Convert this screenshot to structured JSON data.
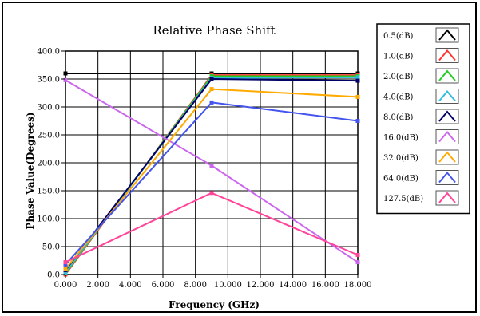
{
  "chart_data": {
    "type": "line",
    "title": "Relative Phase Shift",
    "xlabel": "Frequency (GHz)",
    "ylabel": "Phase Value(Degrees)",
    "xlim": [
      0,
      18
    ],
    "ylim": [
      0,
      400
    ],
    "grid": true,
    "legend_position": "right",
    "x_ticks": [
      "0.000",
      "2.000",
      "4.000",
      "6.000",
      "8.000",
      "10.000",
      "12.000",
      "14.000",
      "16.000",
      "18.000"
    ],
    "y_ticks": [
      "0.0",
      "50.0",
      "100.0",
      "150.0",
      "200.0",
      "250.0",
      "300.0",
      "350.0",
      "400.0"
    ],
    "x": [
      0,
      9,
      18
    ],
    "series": [
      {
        "name": "0.5(dB)",
        "color": "#000000",
        "values": [
          360,
          360,
          360
        ]
      },
      {
        "name": "1.0(dB)",
        "color": "#ff3333",
        "values": [
          0,
          357,
          357
        ]
      },
      {
        "name": "2.0(dB)",
        "color": "#22cc22",
        "values": [
          2,
          355,
          355
        ]
      },
      {
        "name": "4.0(dB)",
        "color": "#33bbdd",
        "values": [
          4,
          352,
          353
        ]
      },
      {
        "name": "8.0(dB)",
        "color": "#000066",
        "values": [
          8,
          350,
          347
        ]
      },
      {
        "name": "16.0(dB)",
        "color": "#cc66ee",
        "values": [
          348,
          195,
          22
        ]
      },
      {
        "name": "32.0(dB)",
        "color": "#ffaa00",
        "values": [
          10,
          332,
          318
        ]
      },
      {
        "name": "64.0(dB)",
        "color": "#4455ee",
        "values": [
          18,
          308,
          275
        ]
      },
      {
        "name": "127.5(dB)",
        "color": "#ff4499",
        "values": [
          22,
          146,
          35
        ]
      }
    ]
  }
}
